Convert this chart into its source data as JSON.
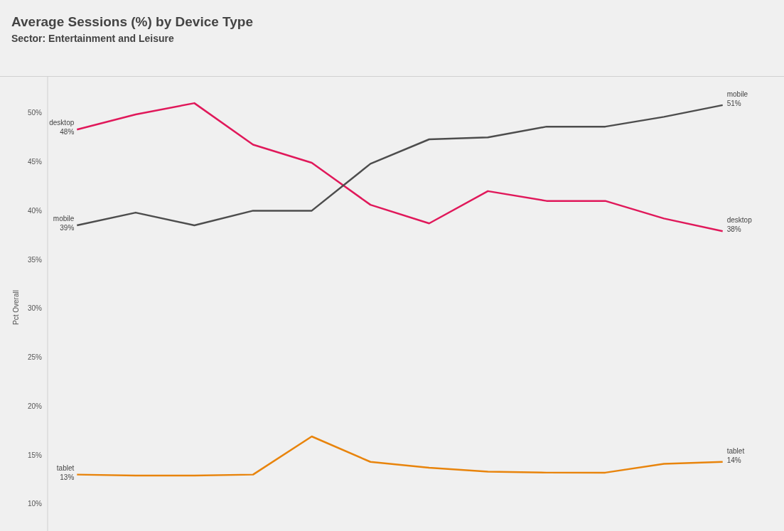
{
  "chart_data": {
    "type": "line",
    "title": "Average Sessions (%) by Device Type",
    "subtitle": "Sector: Entertainment and Leisure",
    "ylabel": "Pct Overall",
    "categories": [
      null,
      null,
      null,
      null,
      null,
      null,
      null,
      null,
      null,
      null,
      null,
      null
    ],
    "series": [
      {
        "name": "desktop",
        "color": "#e0185a",
        "values": [
          48.3,
          49.85,
          51.0,
          46.75,
          44.9,
          40.6,
          38.7,
          42.0,
          41.0,
          41.0,
          39.2,
          37.9
        ],
        "value_labels": [
          "48%",
          null,
          null,
          null,
          null,
          null,
          null,
          null,
          null,
          null,
          null,
          "38%"
        ]
      },
      {
        "name": "mobile",
        "color": "#4d4d4d",
        "values": [
          38.5,
          39.8,
          38.5,
          40.0,
          40.0,
          44.8,
          47.3,
          47.5,
          48.6,
          48.6,
          49.6,
          50.8
        ],
        "value_labels": [
          "39%",
          null,
          null,
          null,
          null,
          null,
          null,
          null,
          null,
          null,
          null,
          "51%"
        ]
      },
      {
        "name": "tablet",
        "color": "#e8840c",
        "values": [
          13.0,
          12.9,
          12.9,
          13.0,
          16.9,
          14.3,
          13.7,
          13.3,
          13.2,
          13.2,
          14.1,
          14.3
        ],
        "value_labels": [
          "13%",
          null,
          null,
          null,
          null,
          null,
          null,
          null,
          null,
          null,
          null,
          "14%"
        ]
      }
    ],
    "ylim": [
      6.5,
      53.7
    ],
    "yticks": [
      {
        "value": 10,
        "label": "10%"
      },
      {
        "value": 15,
        "label": "15%"
      },
      {
        "value": 20,
        "label": "20%"
      },
      {
        "value": 25,
        "label": "25%"
      },
      {
        "value": 30,
        "label": "30%"
      },
      {
        "value": 35,
        "label": "35%"
      },
      {
        "value": 40,
        "label": "40%"
      },
      {
        "value": 45,
        "label": "45%"
      },
      {
        "value": 50,
        "label": "50%"
      }
    ],
    "grid": false,
    "legend": false,
    "marker": "none",
    "line_style": "solid"
  }
}
